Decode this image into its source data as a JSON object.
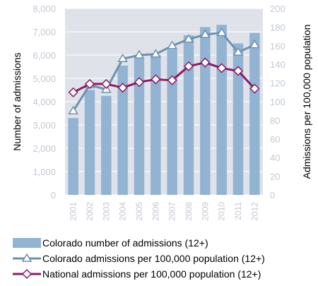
{
  "chart_data": {
    "type": "bar",
    "categories": [
      "2001",
      "2002",
      "2003",
      "2004",
      "2005",
      "2006",
      "2007",
      "2008",
      "2009",
      "2010",
      "2011",
      "2012"
    ],
    "y_left": {
      "label": "Number of admissions",
      "ylim": [
        0,
        8000
      ],
      "ticks": [
        "0",
        "1,000",
        "2,000",
        "3,000",
        "4,000",
        "5,000",
        "6,000",
        "7,000",
        "8,000"
      ]
    },
    "y_right": {
      "label": "Admissions per 100,000 population",
      "ylim": [
        0,
        200
      ],
      "ticks": [
        "0",
        "20",
        "40",
        "60",
        "80",
        "100",
        "120",
        "140",
        "160",
        "180",
        "200"
      ]
    },
    "series": [
      {
        "name": "Colorado number of admissions (12+)",
        "type": "bar",
        "axis": "left",
        "color": "#93b3d3",
        "values": [
          3300,
          4500,
          4250,
          5550,
          5850,
          6000,
          6250,
          6850,
          7200,
          7300,
          6500,
          6950
        ]
      },
      {
        "name": "Colorado admissions per 100,000 population (12+)",
        "type": "line",
        "axis": "right",
        "marker": "triangle",
        "color": "#6d91b0",
        "values": [
          90,
          118,
          113,
          146,
          150,
          151,
          160,
          167,
          172,
          174,
          153,
          161
        ]
      },
      {
        "name": "National admissions per 100,000 population (12+)",
        "type": "line",
        "axis": "right",
        "marker": "diamond",
        "color": "#8c1c67",
        "values": [
          110,
          119,
          119,
          115,
          121,
          124,
          123,
          138,
          142,
          136,
          133,
          114
        ]
      }
    ],
    "grid": true,
    "legend_position": "bottom"
  }
}
